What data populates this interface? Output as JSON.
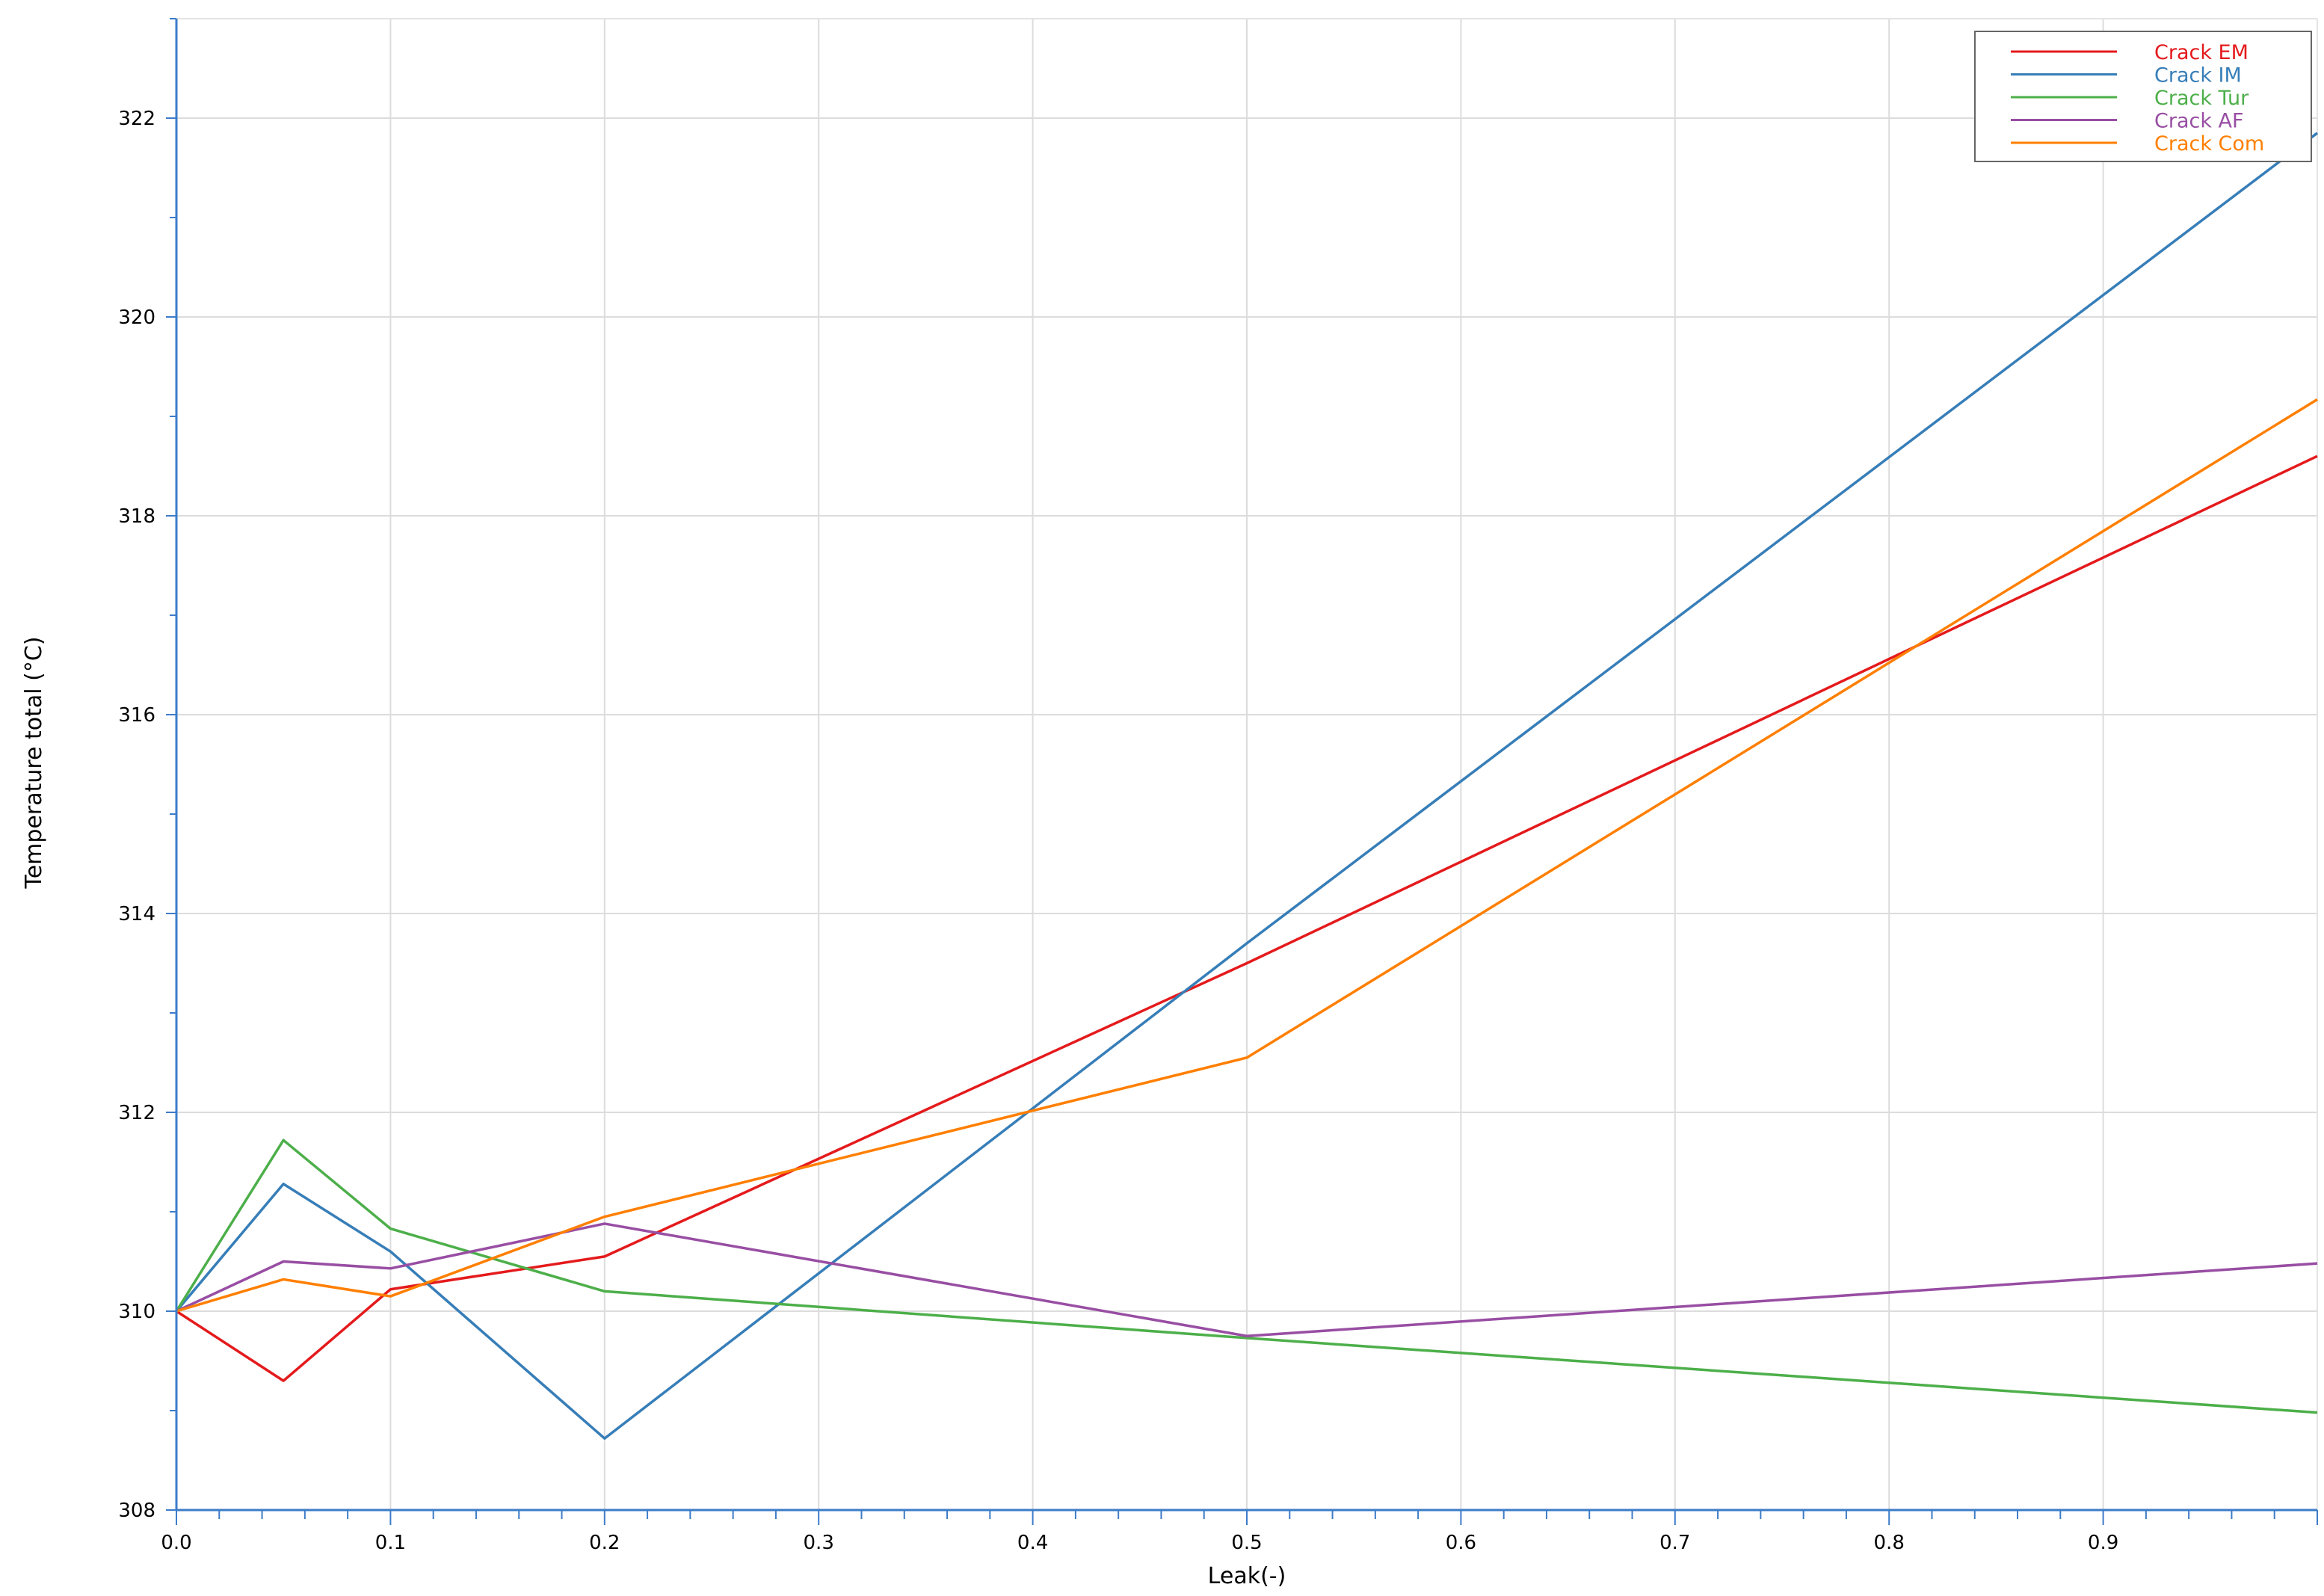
{
  "chart_data": {
    "type": "line",
    "xlabel": "Leak(-)",
    "ylabel": "Temperature total (°C)",
    "xlim": [
      0,
      1.0
    ],
    "ylim": [
      308,
      323
    ],
    "x_ticks": [
      "0.0",
      "0.1",
      "0.2",
      "0.3",
      "0.4",
      "0.5",
      "0.6",
      "0.7",
      "0.8",
      "0.9"
    ],
    "x_tick_values": [
      0,
      0.1,
      0.2,
      0.3,
      0.4,
      0.5,
      0.6,
      0.7,
      0.8,
      0.9
    ],
    "y_ticks": [
      "308",
      "310",
      "312",
      "314",
      "316",
      "318",
      "320",
      "322"
    ],
    "y_tick_values": [
      308,
      310,
      312,
      314,
      316,
      318,
      320,
      322
    ],
    "grid": true,
    "legend_position": "top-right",
    "x": [
      0,
      0.05,
      0.1,
      0.2,
      0.5,
      1.0
    ],
    "series": [
      {
        "name": "Crack EM",
        "color": "#e41a1c",
        "values": [
          310.0,
          309.3,
          310.22,
          310.55,
          313.5,
          318.6
        ]
      },
      {
        "name": "Crack IM",
        "color": "#377eb8",
        "values": [
          310.0,
          311.28,
          310.6,
          308.72,
          313.7,
          321.85
        ]
      },
      {
        "name": "Crack Tur",
        "color": "#4daf4a",
        "values": [
          310.0,
          311.72,
          310.83,
          310.2,
          309.73,
          308.98
        ]
      },
      {
        "name": "Crack AF",
        "color": "#984ea3",
        "values": [
          310.0,
          310.5,
          310.43,
          310.88,
          309.75,
          310.48
        ]
      },
      {
        "name": "Crack Com",
        "color": "#ff7f00",
        "values": [
          310.0,
          310.32,
          310.15,
          310.95,
          312.55,
          319.17
        ]
      }
    ]
  }
}
